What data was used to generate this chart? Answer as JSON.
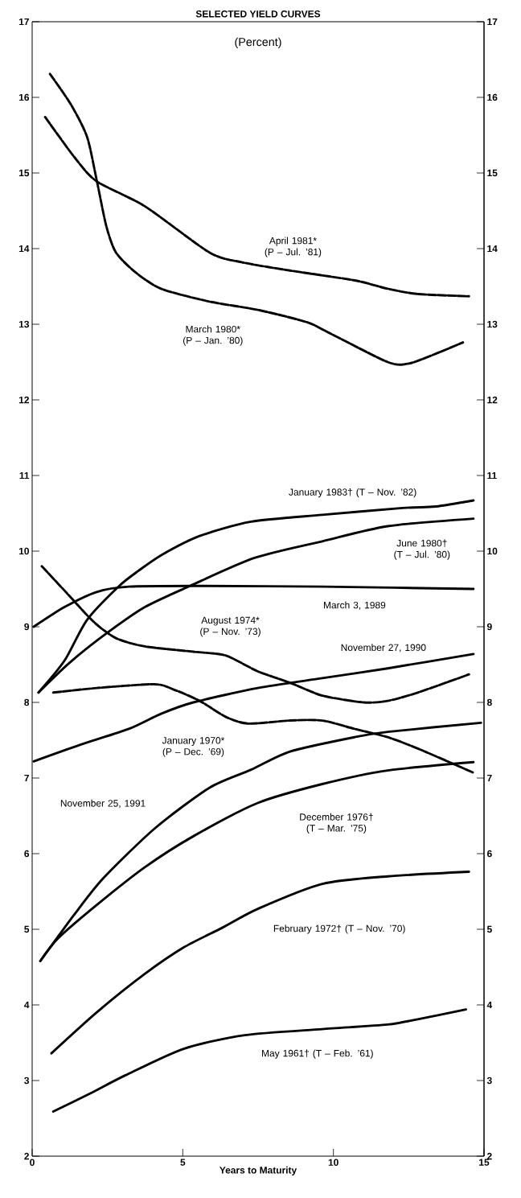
{
  "chart_data": {
    "type": "line",
    "title": "SELECTED YIELD CURVES",
    "subtitle": "(Percent)",
    "xlabel": "Years to Maturity",
    "xlim": [
      0,
      15
    ],
    "xticks": [
      0,
      5,
      10,
      15
    ],
    "ylim": [
      2,
      17
    ],
    "yticks": [
      2,
      3,
      4,
      5,
      6,
      7,
      8,
      9,
      10,
      11,
      12,
      13,
      14,
      15,
      16,
      17
    ],
    "y2lim": [
      2,
      17
    ],
    "y2ticks": [
      2,
      3,
      4,
      5,
      6,
      7,
      8,
      9,
      10,
      11,
      12,
      13,
      14,
      15,
      16,
      17
    ],
    "grid": false,
    "marker": "none",
    "series": [
      {
        "name": "April 1981* (P – Jul. ’81)",
        "color": "#000000",
        "line_style": "dashed",
        "x": [
          0.43,
          1.4,
          2.14,
          3.74,
          5.88,
          6.95,
          8.56,
          10.7,
          11.8,
          12.8,
          14.5
        ],
        "values": [
          15.74,
          15.21,
          14.89,
          14.56,
          13.95,
          13.82,
          13.71,
          13.58,
          13.47,
          13.4,
          13.37
        ]
      },
      {
        "name": "March 1980* (P – Jan. ’80)",
        "color": "#000000",
        "line_style": "dashed",
        "x": [
          0.59,
          1.28,
          1.82,
          2.14,
          2.46,
          2.78,
          3.42,
          4.28,
          5.88,
          7.49,
          9.1,
          9.84,
          11.8,
          12.5,
          13.4,
          14.3
        ],
        "values": [
          16.31,
          15.91,
          15.48,
          14.91,
          14.3,
          13.95,
          13.69,
          13.47,
          13.3,
          13.19,
          13.03,
          12.89,
          12.5,
          12.48,
          12.61,
          12.76
        ]
      },
      {
        "name": "January 1983† (T – Nov. ’82)",
        "color": "#000000",
        "line_style": "solid",
        "x": [
          0.21,
          1.07,
          1.82,
          2.89,
          3.53,
          4.3,
          5.56,
          7.27,
          9.63,
          12.3,
          13.4,
          14.65
        ],
        "values": [
          8.13,
          8.55,
          9.09,
          9.54,
          9.74,
          9.95,
          10.2,
          10.39,
          10.48,
          10.57,
          10.59,
          10.67
        ]
      },
      {
        "name": "June 1980† (T – Jul. ’80)",
        "color": "#000000",
        "line_style": "solid",
        "x": [
          0.21,
          1.23,
          2.46,
          3.74,
          5.24,
          7.38,
          9.63,
          11.8,
          14.65
        ],
        "values": [
          8.13,
          8.52,
          8.91,
          9.26,
          9.54,
          9.91,
          10.13,
          10.33,
          10.43
        ]
      },
      {
        "name": "March 3,  1989",
        "color": "#000000",
        "line_style": "solid",
        "x": [
          0.05,
          1.07,
          2.14,
          3.21,
          5.35,
          9.63,
          14.65
        ],
        "values": [
          9.0,
          9.26,
          9.46,
          9.53,
          9.54,
          9.53,
          9.5
        ]
      },
      {
        "name": "August 1974* (P – Nov. ’73)",
        "color": "#000000",
        "line_style": "dashed",
        "x": [
          0.32,
          1.07,
          2.03,
          2.78,
          3.74,
          5.35,
          6.42,
          7.49,
          8.56,
          9.63,
          11.0,
          11.8,
          12.8,
          14.5
        ],
        "values": [
          9.8,
          9.48,
          9.07,
          8.85,
          8.74,
          8.67,
          8.62,
          8.41,
          8.26,
          8.09,
          8.0,
          8.02,
          8.13,
          8.37
        ]
      },
      {
        "name": "November 27, 1990",
        "color": "#000000",
        "line_style": "solid",
        "x": [
          0.05,
          1.6,
          3.21,
          4.28,
          5.35,
          7.49,
          9.63,
          11.8,
          14.65
        ],
        "values": [
          7.22,
          7.44,
          7.65,
          7.85,
          8.0,
          8.19,
          8.32,
          8.45,
          8.64
        ]
      },
      {
        "name": "January 1970* (P – Dec. ’69)",
        "color": "#000000",
        "line_style": "dashed",
        "x": [
          0.7,
          2.14,
          4.06,
          4.7,
          5.56,
          6.42,
          7.17,
          8.56,
          9.63,
          10.7,
          11.8,
          12.8,
          14.65
        ],
        "values": [
          8.13,
          8.19,
          8.24,
          8.17,
          8.02,
          7.81,
          7.72,
          7.76,
          7.76,
          7.65,
          7.54,
          7.39,
          7.07
        ]
      },
      {
        "name": "November 25, 1991",
        "color": "#000000",
        "line_style": "solid",
        "x": [
          0.27,
          1.39,
          2.35,
          4.06,
          5.88,
          7.27,
          8.56,
          10.7,
          11.8,
          14.9
        ],
        "values": [
          4.58,
          5.19,
          5.67,
          6.33,
          6.87,
          7.11,
          7.35,
          7.54,
          7.61,
          7.73
        ]
      },
      {
        "name": "December 1976† (T – Mar. ’75)",
        "color": "#000000",
        "line_style": "solid",
        "x": [
          0.27,
          0.86,
          2.14,
          3.74,
          5.35,
          7.49,
          9.63,
          11.8,
          14.65
        ],
        "values": [
          4.58,
          4.88,
          5.32,
          5.82,
          6.23,
          6.67,
          6.92,
          7.1,
          7.21
        ]
      },
      {
        "name": "February 1972† (T – Nov. ’70)",
        "color": "#000000",
        "line_style": "solid",
        "x": [
          0.64,
          2.14,
          3.74,
          5.03,
          6.31,
          7.49,
          9.63,
          11.8,
          14.5
        ],
        "values": [
          3.36,
          3.9,
          4.41,
          4.76,
          5.02,
          5.27,
          5.6,
          5.7,
          5.76
        ]
      },
      {
        "name": "May 1961† (T – Feb. ’61)",
        "color": "#000000",
        "line_style": "solid",
        "x": [
          0.7,
          1.93,
          3.1,
          5.03,
          7.06,
          9.63,
          11.8,
          12.8,
          14.4
        ],
        "values": [
          2.59,
          2.83,
          3.07,
          3.42,
          3.6,
          3.68,
          3.74,
          3.81,
          3.94
        ]
      }
    ]
  }
}
